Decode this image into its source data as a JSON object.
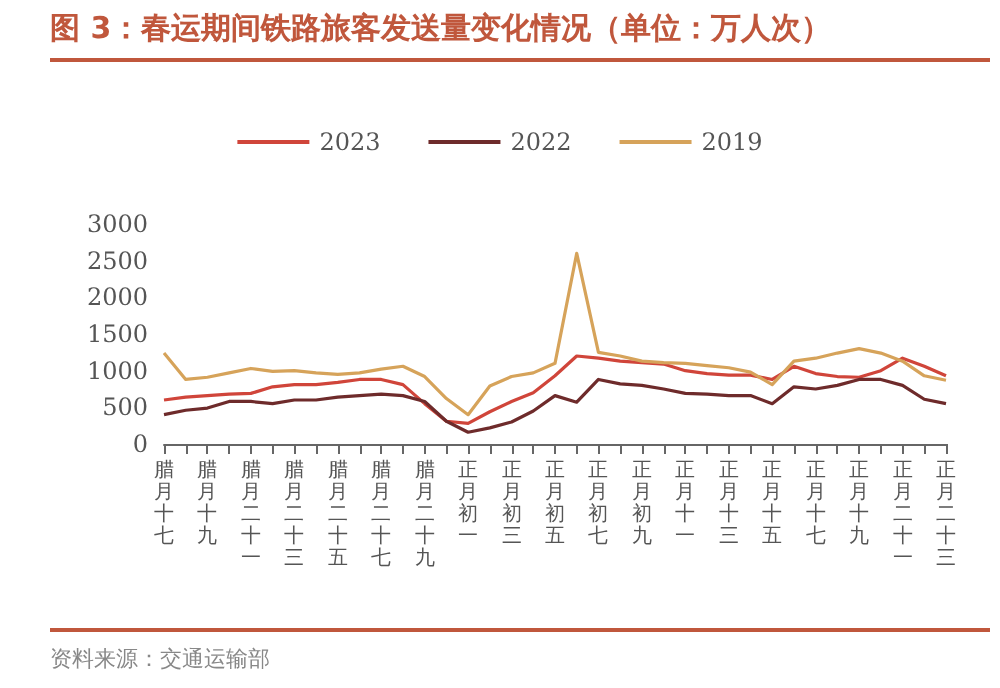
{
  "chart_data": {
    "type": "line",
    "title": "图 3：春运期间铁路旅客发送量变化情况（单位：万人次）",
    "categories": [
      "腊月十七",
      null,
      "腊月十九",
      null,
      "腊月二十一",
      null,
      "腊月二十三",
      null,
      "腊月二十五",
      null,
      "腊月二十七",
      null,
      "腊月二十九",
      null,
      "正月初一",
      null,
      "正月初三",
      null,
      "正月初五",
      null,
      "正月初七",
      null,
      "正月初九",
      null,
      "正月十一",
      null,
      "正月十三",
      null,
      "正月十五",
      null,
      "正月十七",
      null,
      "正月十九",
      null,
      "正月二十一",
      null,
      "正月二十三"
    ],
    "series": [
      {
        "name": "2023",
        "color": "#d0453a",
        "values": [
          600,
          640,
          660,
          680,
          690,
          780,
          810,
          810,
          840,
          880,
          880,
          810,
          550,
          310,
          280,
          440,
          580,
          700,
          930,
          1200,
          1170,
          1130,
          1110,
          1090,
          1000,
          960,
          940,
          940,
          880,
          1060,
          960,
          920,
          910,
          1000,
          1170,
          1060,
          930
        ]
      },
      {
        "name": "2022",
        "color": "#6e2b2b",
        "values": [
          400,
          460,
          490,
          580,
          580,
          550,
          600,
          600,
          640,
          660,
          680,
          660,
          580,
          310,
          160,
          220,
          300,
          450,
          660,
          570,
          880,
          820,
          800,
          750,
          690,
          680,
          660,
          660,
          550,
          780,
          750,
          800,
          880,
          880,
          800,
          610,
          550
        ]
      },
      {
        "name": "2019",
        "color": "#d6a35a",
        "values": [
          1240,
          880,
          910,
          970,
          1030,
          990,
          1000,
          970,
          950,
          970,
          1020,
          1060,
          920,
          620,
          400,
          790,
          920,
          970,
          1100,
          2600,
          1250,
          1200,
          1130,
          1110,
          1100,
          1070,
          1040,
          980,
          810,
          1130,
          1170,
          1240,
          1300,
          1240,
          1130,
          930,
          870
        ]
      }
    ],
    "ylim": [
      0,
      3000
    ],
    "yticks": [
      0,
      500,
      1000,
      1500,
      2000,
      2500,
      3000
    ],
    "legend": "top",
    "marker": "none",
    "grid": false,
    "annotations": [
      "资料来源：交通运输部"
    ]
  }
}
